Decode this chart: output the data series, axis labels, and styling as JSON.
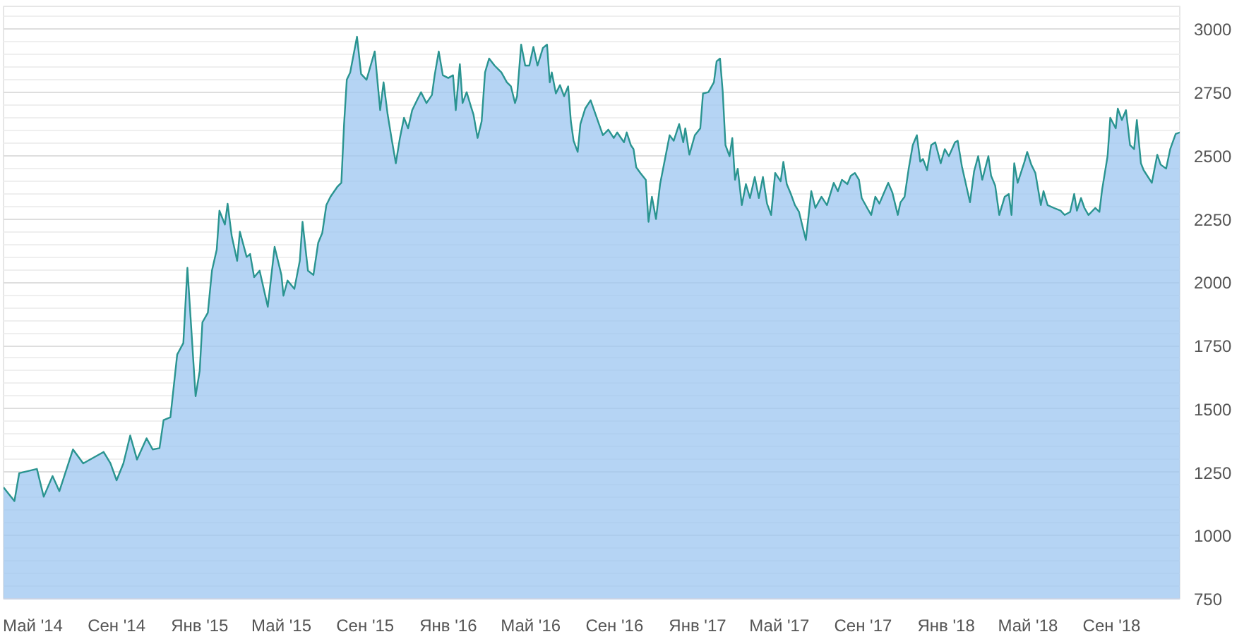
{
  "chart_data": {
    "type": "area",
    "x": [
      "2014-03-19",
      "2014-04-04",
      "2014-04-11",
      "2014-05-07",
      "2014-05-17",
      "2014-05-30",
      "2014-06-09",
      "2014-06-29",
      "2014-07-14",
      "2014-08-13",
      "2014-08-23",
      "2014-09-01",
      "2014-09-11",
      "2014-09-21",
      "2014-10-01",
      "2014-10-15",
      "2014-10-24",
      "2014-11-03",
      "2014-11-09",
      "2014-11-19",
      "2014-11-29",
      "2014-12-08",
      "2014-12-14",
      "2014-12-26",
      "2015-01-01",
      "2015-01-05",
      "2015-01-13",
      "2015-01-19",
      "2015-01-26",
      "2015-01-30",
      "2015-02-07",
      "2015-02-11",
      "2015-02-17",
      "2015-02-25",
      "2015-03-01",
      "2015-03-11",
      "2015-03-16",
      "2015-03-22",
      "2015-03-30",
      "2015-04-11",
      "2015-04-21",
      "2015-05-01",
      "2015-05-04",
      "2015-05-10",
      "2015-05-20",
      "2015-05-28",
      "2015-06-01",
      "2015-06-09",
      "2015-06-17",
      "2015-06-24",
      "2015-06-30",
      "2015-07-06",
      "2015-07-12",
      "2015-07-22",
      "2015-07-28",
      "2015-08-01",
      "2015-08-05",
      "2015-08-10",
      "2015-08-20",
      "2015-08-26",
      "2015-09-03",
      "2015-09-09",
      "2015-09-15",
      "2015-09-23",
      "2015-09-28",
      "2015-10-04",
      "2015-10-10",
      "2015-10-16",
      "2015-10-22",
      "2015-10-28",
      "2015-11-03",
      "2015-11-09",
      "2015-11-16",
      "2015-11-22",
      "2015-11-30",
      "2015-12-08",
      "2015-12-12",
      "2015-12-18",
      "2015-12-24",
      "2016-01-01",
      "2016-01-08",
      "2016-01-12",
      "2016-01-18",
      "2016-01-22",
      "2016-01-28",
      "2016-02-03",
      "2016-02-07",
      "2016-02-13",
      "2016-02-19",
      "2016-02-24",
      "2016-03-01",
      "2016-03-09",
      "2016-03-19",
      "2016-03-27",
      "2016-04-02",
      "2016-04-08",
      "2016-04-11",
      "2016-04-17",
      "2016-04-23",
      "2016-04-29",
      "2016-05-05",
      "2016-05-11",
      "2016-05-19",
      "2016-05-25",
      "2016-05-29",
      "2016-06-01",
      "2016-06-07",
      "2016-06-13",
      "2016-06-19",
      "2016-06-25",
      "2016-06-29",
      "2016-07-03",
      "2016-07-09",
      "2016-07-13",
      "2016-07-20",
      "2016-07-28",
      "2016-08-05",
      "2016-08-15",
      "2016-08-23",
      "2016-08-31",
      "2016-09-05",
      "2016-09-15",
      "2016-09-19",
      "2016-09-25",
      "2016-09-29",
      "2016-10-03",
      "2016-10-09",
      "2016-10-17",
      "2016-10-21",
      "2016-10-26",
      "2016-11-01",
      "2016-11-07",
      "2016-11-15",
      "2016-11-21",
      "2016-11-27",
      "2016-12-05",
      "2016-12-11",
      "2016-12-14",
      "2016-12-20",
      "2016-12-28",
      "2017-01-05",
      "2017-01-09",
      "2017-01-17",
      "2017-01-25",
      "2017-01-29",
      "2017-02-03",
      "2017-02-07",
      "2017-02-11",
      "2017-02-17",
      "2017-02-21",
      "2017-02-25",
      "2017-03-01",
      "2017-03-07",
      "2017-03-13",
      "2017-03-19",
      "2017-03-26",
      "2017-04-01",
      "2017-04-07",
      "2017-04-13",
      "2017-04-19",
      "2017-04-25",
      "2017-05-03",
      "2017-05-07",
      "2017-05-12",
      "2017-05-18",
      "2017-05-24",
      "2017-05-30",
      "2017-06-09",
      "2017-06-17",
      "2017-06-23",
      "2017-07-02",
      "2017-07-10",
      "2017-07-20",
      "2017-07-26",
      "2017-08-01",
      "2017-08-09",
      "2017-08-14",
      "2017-08-20",
      "2017-08-26",
      "2017-08-30",
      "2017-09-07",
      "2017-09-13",
      "2017-09-19",
      "2017-09-25",
      "2017-10-01",
      "2017-10-08",
      "2017-10-14",
      "2017-10-22",
      "2017-10-26",
      "2017-11-01",
      "2017-11-07",
      "2017-11-13",
      "2017-11-19",
      "2017-11-24",
      "2017-11-28",
      "2017-12-04",
      "2017-12-10",
      "2017-12-16",
      "2017-12-24",
      "2017-12-30",
      "2018-01-05",
      "2018-01-14",
      "2018-01-18",
      "2018-01-24",
      "2018-02-05",
      "2018-02-11",
      "2018-02-17",
      "2018-02-23",
      "2018-03-04",
      "2018-03-08",
      "2018-03-14",
      "2018-03-20",
      "2018-03-28",
      "2018-04-03",
      "2018-04-07",
      "2018-04-11",
      "2018-04-16",
      "2018-04-26",
      "2018-04-30",
      "2018-05-06",
      "2018-05-12",
      "2018-05-20",
      "2018-05-24",
      "2018-05-30",
      "2018-06-08",
      "2018-06-18",
      "2018-06-24",
      "2018-07-02",
      "2018-07-08",
      "2018-07-12",
      "2018-07-18",
      "2018-07-23",
      "2018-07-29",
      "2018-08-08",
      "2018-08-14",
      "2018-08-18",
      "2018-08-26",
      "2018-08-30",
      "2018-09-07",
      "2018-09-10",
      "2018-09-16",
      "2018-09-22",
      "2018-09-28",
      "2018-10-04",
      "2018-10-08",
      "2018-10-14",
      "2018-10-18",
      "2018-10-30",
      "2018-11-07",
      "2018-11-12",
      "2018-11-20",
      "2018-11-26",
      "2018-12-04",
      "2018-12-10"
    ],
    "series": [
      {
        "color": "#2a9490",
        "values": [
          1190,
          1136,
          1246,
          1263,
          1153,
          1235,
          1175,
          1340,
          1285,
          1330,
          1285,
          1218,
          1285,
          1395,
          1300,
          1384,
          1340,
          1345,
          1456,
          1467,
          1715,
          1760,
          2057,
          1550,
          1650,
          1842,
          1880,
          2046,
          2129,
          2283,
          2228,
          2310,
          2184,
          2085,
          2200,
          2100,
          2112,
          2020,
          2046,
          1903,
          2140,
          2029,
          1947,
          2007,
          1974,
          2085,
          2239,
          2046,
          2029,
          2156,
          2195,
          2305,
          2338,
          2377,
          2393,
          2625,
          2800,
          2829,
          2970,
          2823,
          2800,
          2856,
          2912,
          2680,
          2790,
          2663,
          2564,
          2470,
          2570,
          2650,
          2608,
          2680,
          2719,
          2751,
          2708,
          2740,
          2818,
          2912,
          2818,
          2807,
          2818,
          2680,
          2862,
          2708,
          2751,
          2697,
          2663,
          2570,
          2636,
          2829,
          2884,
          2856,
          2829,
          2790,
          2774,
          2708,
          2735,
          2939,
          2856,
          2856,
          2930,
          2856,
          2926,
          2939,
          2790,
          2829,
          2746,
          2779,
          2735,
          2774,
          2636,
          2559,
          2515,
          2625,
          2686,
          2719,
          2658,
          2581,
          2603,
          2570,
          2592,
          2553,
          2592,
          2542,
          2526,
          2454,
          2432,
          2405,
          2239,
          2338,
          2250,
          2388,
          2498,
          2581,
          2559,
          2625,
          2553,
          2608,
          2504,
          2581,
          2608,
          2746,
          2751,
          2790,
          2873,
          2884,
          2751,
          2542,
          2498,
          2570,
          2405,
          2449,
          2305,
          2388,
          2333,
          2416,
          2333,
          2416,
          2311,
          2266,
          2432,
          2399,
          2476,
          2388,
          2349,
          2305,
          2278,
          2167,
          2360,
          2294,
          2338,
          2305,
          2393,
          2360,
          2405,
          2388,
          2421,
          2432,
          2405,
          2333,
          2294,
          2266,
          2338,
          2311,
          2349,
          2393,
          2355,
          2266,
          2316,
          2338,
          2449,
          2542,
          2581,
          2476,
          2487,
          2443,
          2542,
          2553,
          2470,
          2526,
          2498,
          2553,
          2559,
          2460,
          2316,
          2438,
          2498,
          2405,
          2498,
          2421,
          2382,
          2266,
          2338,
          2349,
          2266,
          2470,
          2393,
          2476,
          2515,
          2465,
          2432,
          2305,
          2360,
          2305,
          2294,
          2283,
          2266,
          2278,
          2349,
          2283,
          2333,
          2294,
          2266,
          2294,
          2278,
          2366,
          2498,
          2650,
          2608,
          2686,
          2641,
          2680,
          2542,
          2526,
          2641,
          2470,
          2443,
          2393,
          2504,
          2465,
          2449,
          2526,
          2586,
          2592
        ]
      }
    ],
    "xlim": [
      "2014-03-19",
      "2018-12-10"
    ],
    "xticks": [
      {
        "value": "2014-05-01",
        "label": "Май '14"
      },
      {
        "value": "2014-09-01",
        "label": "Сен '14"
      },
      {
        "value": "2015-01-01",
        "label": "Янв '15"
      },
      {
        "value": "2015-05-01",
        "label": "Май '15"
      },
      {
        "value": "2015-09-01",
        "label": "Сен '15"
      },
      {
        "value": "2016-01-01",
        "label": "Янв '16"
      },
      {
        "value": "2016-05-01",
        "label": "Май '16"
      },
      {
        "value": "2016-09-01",
        "label": "Сен '16"
      },
      {
        "value": "2017-01-01",
        "label": "Янв '17"
      },
      {
        "value": "2017-05-01",
        "label": "Май '17"
      },
      {
        "value": "2017-09-01",
        "label": "Сен '17"
      },
      {
        "value": "2018-01-01",
        "label": "Янв '18"
      },
      {
        "value": "2018-05-01",
        "label": "Май '18"
      },
      {
        "value": "2018-09-01",
        "label": "Сен '18"
      }
    ],
    "ylim": [
      750,
      3090
    ],
    "yticks": [
      750,
      {
        "value": 800,
        "label": null
      },
      {
        "value": 850,
        "label": null
      },
      {
        "value": 900,
        "label": null
      },
      {
        "value": 950,
        "label": null
      },
      1000,
      {
        "value": 1050,
        "label": null
      },
      {
        "value": 1100,
        "label": null
      },
      {
        "value": 1150,
        "label": null
      },
      {
        "value": 1200,
        "label": null
      },
      1250,
      {
        "value": 1300,
        "label": null
      },
      {
        "value": 1350,
        "label": null
      },
      {
        "value": 1400,
        "label": null
      },
      {
        "value": 1450,
        "label": null
      },
      1500,
      {
        "value": 1550,
        "label": null
      },
      {
        "value": 1600,
        "label": null
      },
      {
        "value": 1650,
        "label": null
      },
      {
        "value": 1700,
        "label": null
      },
      1750,
      {
        "value": 1800,
        "label": null
      },
      {
        "value": 1850,
        "label": null
      },
      {
        "value": 1900,
        "label": null
      },
      {
        "value": 1950,
        "label": null
      },
      2000,
      {
        "value": 2050,
        "label": null
      },
      {
        "value": 2100,
        "label": null
      },
      {
        "value": 2150,
        "label": null
      },
      {
        "value": 2200,
        "label": null
      },
      2250,
      {
        "value": 2300,
        "label": null
      },
      {
        "value": 2350,
        "label": null
      },
      {
        "value": 2400,
        "label": null
      },
      {
        "value": 2450,
        "label": null
      },
      2500,
      {
        "value": 2550,
        "label": null
      },
      {
        "value": 2600,
        "label": null
      },
      {
        "value": 2650,
        "label": null
      },
      {
        "value": 2700,
        "label": null
      },
      2750,
      {
        "value": 2800,
        "label": null
      },
      {
        "value": 2850,
        "label": null
      },
      {
        "value": 2900,
        "label": null
      },
      {
        "value": 2950,
        "label": null
      },
      3000,
      {
        "value": 3050,
        "label": null
      }
    ],
    "grid": true
  }
}
